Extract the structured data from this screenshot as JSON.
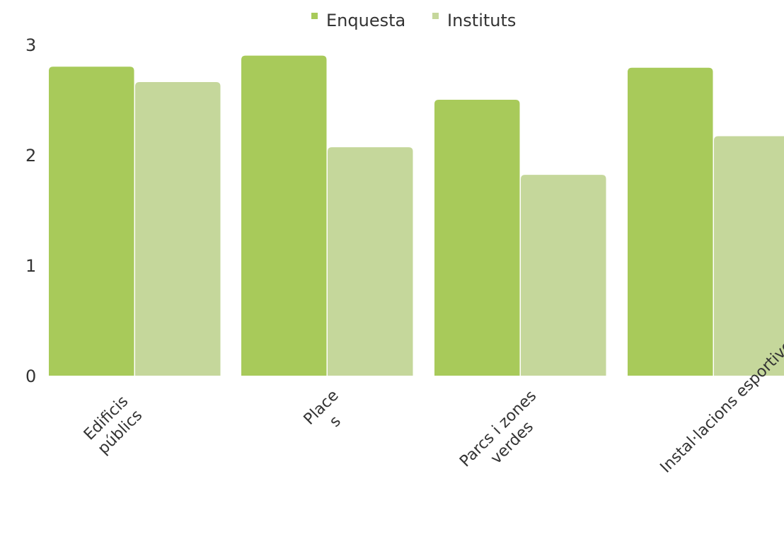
{
  "chart_data": {
    "type": "bar",
    "categories": [
      [
        "Edificis",
        "públics"
      ],
      [
        "Place",
        "s"
      ],
      [
        "Parcs i zones",
        "verdes"
      ],
      [
        "Instal·lacions esportives"
      ]
    ],
    "series": [
      {
        "name": "Enquesta",
        "values": [
          2.8,
          2.9,
          2.5,
          2.79
        ],
        "color": "#a8ca5a"
      },
      {
        "name": "Instituts",
        "values": [
          2.66,
          2.07,
          1.82,
          2.17
        ],
        "color": "#c5d79b"
      }
    ],
    "ylim": [
      0,
      3
    ],
    "yticks": [
      "0",
      "1",
      "2",
      "3"
    ],
    "legend_position": "top-center",
    "grid": false
  }
}
